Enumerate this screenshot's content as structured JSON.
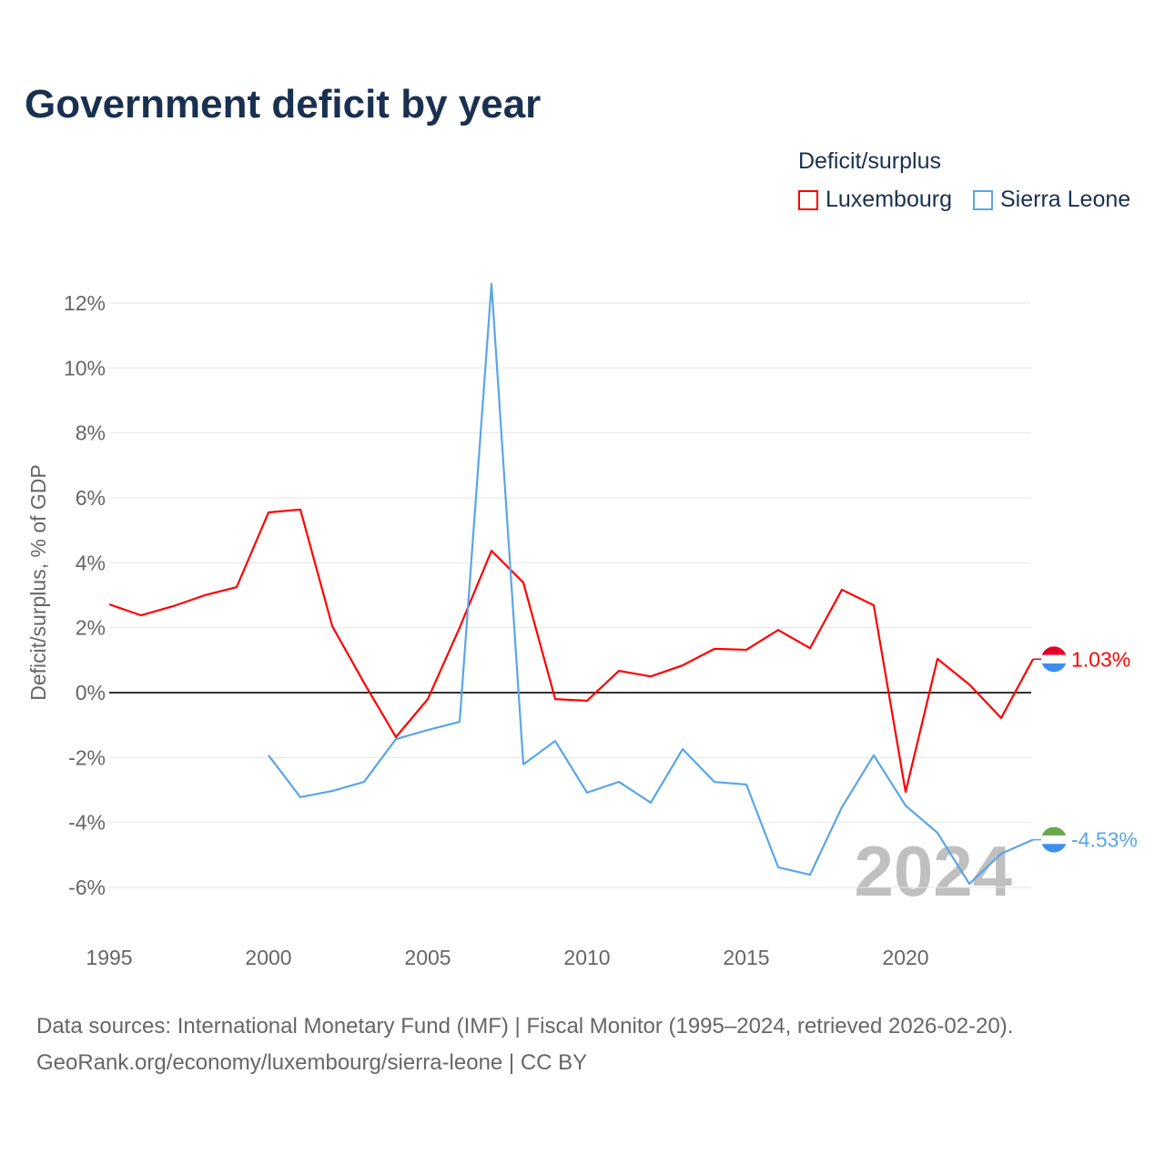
{
  "title": "Government deficit by year",
  "legend": {
    "title": "Deficit/surplus",
    "items": [
      "Luxembourg",
      "Sierra Leone"
    ]
  },
  "footer": {
    "line1": "Data sources: International Monetary Fund (IMF) | Fiscal Monitor (1995–2024, retrieved 2026-02-20).",
    "line2": "GeoRank.org/economy/luxembourg/sierra-leone | CC BY"
  },
  "watermark_year": "2024",
  "chart_data": {
    "type": "line",
    "title": "Government deficit by year",
    "xlabel": "",
    "ylabel": "Deficit/surplus, % of GDP",
    "xlim": [
      1995,
      2024
    ],
    "ylim": [
      -7,
      13
    ],
    "yticks": [
      -6,
      -4,
      -2,
      0,
      2,
      4,
      6,
      8,
      10,
      12
    ],
    "ytick_labels": [
      "-6%",
      "-4%",
      "-2%",
      "0%",
      "2%",
      "4%",
      "6%",
      "8%",
      "10%",
      "12%"
    ],
    "xticks": [
      1995,
      2000,
      2005,
      2010,
      2015,
      2020
    ],
    "xtick_labels": [
      "1995",
      "2000",
      "2005",
      "2010",
      "2015",
      "2020"
    ],
    "grid": true,
    "legend_position": "top-right",
    "series": [
      {
        "name": "Luxembourg",
        "color": "#ff0000",
        "end_label": "1.03%",
        "x": [
          1995,
          1996,
          1997,
          1998,
          1999,
          2000,
          2001,
          2002,
          2003,
          2004,
          2005,
          2006,
          2007,
          2008,
          2009,
          2010,
          2011,
          2012,
          2013,
          2014,
          2015,
          2016,
          2017,
          2018,
          2019,
          2020,
          2021,
          2022,
          2023,
          2024
        ],
        "values": [
          2.72,
          2.38,
          2.66,
          3.0,
          3.25,
          5.55,
          5.64,
          2.05,
          0.3,
          -1.37,
          -0.2,
          2.0,
          4.37,
          3.39,
          -0.2,
          -0.25,
          0.67,
          0.5,
          0.84,
          1.35,
          1.32,
          1.93,
          1.37,
          3.17,
          2.69,
          -3.06,
          1.04,
          0.25,
          -0.78,
          1.03
        ]
      },
      {
        "name": "Sierra Leone",
        "color": "#5aa5e8",
        "end_label": "-4.53%",
        "x": [
          2000,
          2001,
          2002,
          2003,
          2004,
          2005,
          2006,
          2007,
          2008,
          2009,
          2010,
          2011,
          2012,
          2013,
          2014,
          2015,
          2016,
          2017,
          2018,
          2019,
          2020,
          2021,
          2022,
          2023,
          2024
        ],
        "values": [
          -1.93,
          -3.22,
          -3.03,
          -2.75,
          -1.43,
          -1.15,
          -0.9,
          12.59,
          -2.21,
          -1.49,
          -3.08,
          -2.75,
          -3.39,
          -1.74,
          -2.75,
          -2.83,
          -5.38,
          -5.61,
          -3.53,
          -1.93,
          -3.48,
          -4.32,
          -5.89,
          -4.96,
          -4.53
        ]
      }
    ]
  }
}
